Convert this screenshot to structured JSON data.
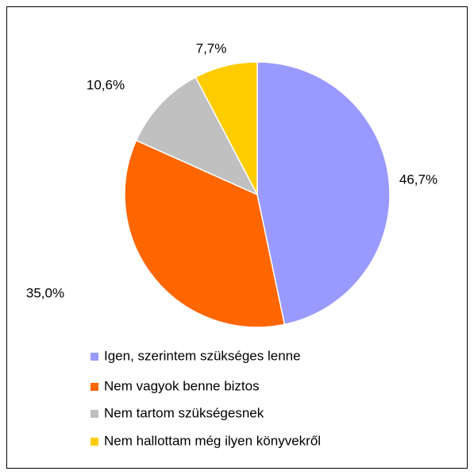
{
  "chart_data": {
    "type": "pie",
    "categories": [
      "Igen, szerintem szükséges lenne",
      "Nem vagyok benne biztos",
      "Nem tartom szükségesnek",
      "Nem hallottam még ilyen könyvekről"
    ],
    "values": [
      46.7,
      35.0,
      10.6,
      7.7
    ],
    "value_labels": [
      "46,7%",
      "35,0%",
      "10,6%",
      "7,7%"
    ],
    "colors": [
      "#9999ff",
      "#ff6600",
      "#c0c0c0",
      "#ffcc00"
    ]
  }
}
